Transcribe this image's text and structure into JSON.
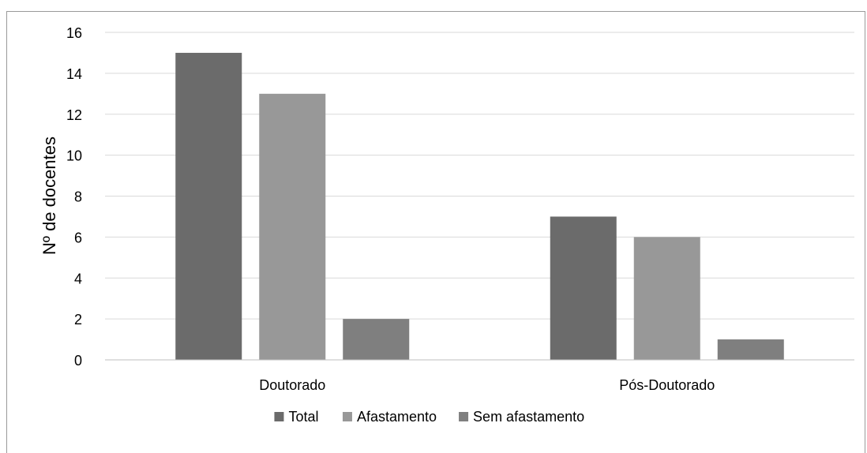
{
  "chart_data": {
    "type": "bar",
    "title": "",
    "xlabel": "",
    "ylabel": "Nº de docentes",
    "categories": [
      "Doutorado",
      "Pós-Doutorado"
    ],
    "series": [
      {
        "name": "Total",
        "values": [
          15,
          7
        ],
        "color": "#6b6b6b"
      },
      {
        "name": "Afastamento",
        "values": [
          13,
          6
        ],
        "color": "#989898"
      },
      {
        "name": "Sem afastamento",
        "values": [
          2,
          1
        ],
        "color": "#7f7f7f"
      }
    ],
    "ylim": [
      0,
      16
    ],
    "yticks": [
      "0",
      "2",
      "4",
      "6",
      "8",
      "10",
      "12",
      "14",
      "16"
    ],
    "grid": true,
    "legend_position": "bottom"
  }
}
